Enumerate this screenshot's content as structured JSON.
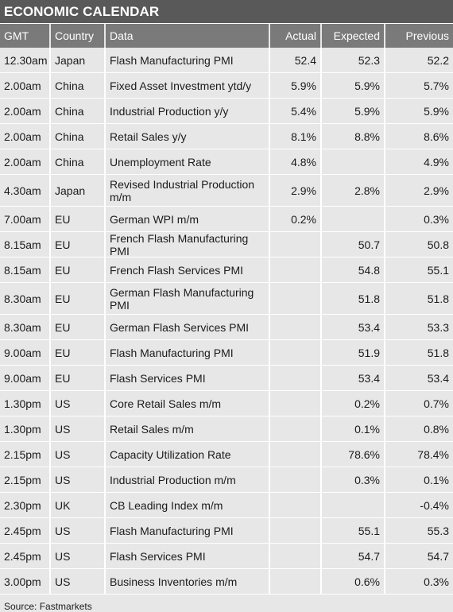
{
  "title": "ECONOMIC CALENDAR",
  "headers": {
    "gmt": "GMT",
    "country": "Country",
    "data": "Data",
    "actual": "Actual",
    "expected": "Expected",
    "previous": "Previous"
  },
  "rows": [
    {
      "gmt": "12.30am",
      "country": "Japan",
      "data": "Flash Manufacturing PMI",
      "actual": "52.4",
      "expected": "52.3",
      "previous": "52.2"
    },
    {
      "gmt": "2.00am",
      "country": "China",
      "data": "Fixed Asset Investment ytd/y",
      "actual": "5.9%",
      "expected": "5.9%",
      "previous": "5.7%"
    },
    {
      "gmt": "2.00am",
      "country": "China",
      "data": "Industrial Production y/y",
      "actual": "5.4%",
      "expected": "5.9%",
      "previous": "5.9%"
    },
    {
      "gmt": "2.00am",
      "country": "China",
      "data": "Retail Sales y/y",
      "actual": "8.1%",
      "expected": "8.8%",
      "previous": "8.6%"
    },
    {
      "gmt": "2.00am",
      "country": "China",
      "data": "Unemployment Rate",
      "actual": "4.8%",
      "expected": "",
      "previous": "4.9%"
    },
    {
      "gmt": "4.30am",
      "country": "Japan",
      "data": "Revised Industrial Production m/m",
      "actual": "2.9%",
      "expected": "2.8%",
      "previous": "2.9%"
    },
    {
      "gmt": "7.00am",
      "country": "EU",
      "data": "German WPI m/m",
      "actual": "0.2%",
      "expected": "",
      "previous": "0.3%"
    },
    {
      "gmt": "8.15am",
      "country": "EU",
      "data": "French Flash Manufacturing PMI",
      "actual": "",
      "expected": "50.7",
      "previous": "50.8"
    },
    {
      "gmt": "8.15am",
      "country": "EU",
      "data": "French Flash Services PMI",
      "actual": "",
      "expected": "54.8",
      "previous": "55.1"
    },
    {
      "gmt": "8.30am",
      "country": "EU",
      "data": "German Flash Manufacturing PMI",
      "actual": "",
      "expected": "51.8",
      "previous": "51.8"
    },
    {
      "gmt": "8.30am",
      "country": "EU",
      "data": "German Flash Services PMI",
      "actual": "",
      "expected": "53.4",
      "previous": "53.3"
    },
    {
      "gmt": "9.00am",
      "country": "EU",
      "data": "Flash Manufacturing PMI",
      "actual": "",
      "expected": "51.9",
      "previous": "51.8"
    },
    {
      "gmt": "9.00am",
      "country": "EU",
      "data": "Flash Services PMI",
      "actual": "",
      "expected": "53.4",
      "previous": "53.4"
    },
    {
      "gmt": "1.30pm",
      "country": "US",
      "data": "Core Retail Sales m/m",
      "actual": "",
      "expected": "0.2%",
      "previous": "0.7%"
    },
    {
      "gmt": "1.30pm",
      "country": "US",
      "data": "Retail Sales m/m",
      "actual": "",
      "expected": "0.1%",
      "previous": "0.8%"
    },
    {
      "gmt": "2.15pm",
      "country": "US",
      "data": "Capacity Utilization Rate",
      "actual": "",
      "expected": "78.6%",
      "previous": "78.4%"
    },
    {
      "gmt": "2.15pm",
      "country": "US",
      "data": "Industrial Production m/m",
      "actual": "",
      "expected": "0.3%",
      "previous": "0.1%"
    },
    {
      "gmt": "2.30pm",
      "country": "UK",
      "data": "CB Leading Index m/m",
      "actual": "",
      "expected": "",
      "previous": "-0.4%"
    },
    {
      "gmt": "2.45pm",
      "country": "US",
      "data": "Flash Manufacturing PMI",
      "actual": "",
      "expected": "55.1",
      "previous": "55.3"
    },
    {
      "gmt": "2.45pm",
      "country": "US",
      "data": "Flash Services PMI",
      "actual": "",
      "expected": "54.7",
      "previous": "54.7"
    },
    {
      "gmt": "3.00pm",
      "country": "US",
      "data": "Business Inventories m/m",
      "actual": "",
      "expected": "0.6%",
      "previous": "0.3%"
    }
  ],
  "source": "Source: Fastmarkets"
}
